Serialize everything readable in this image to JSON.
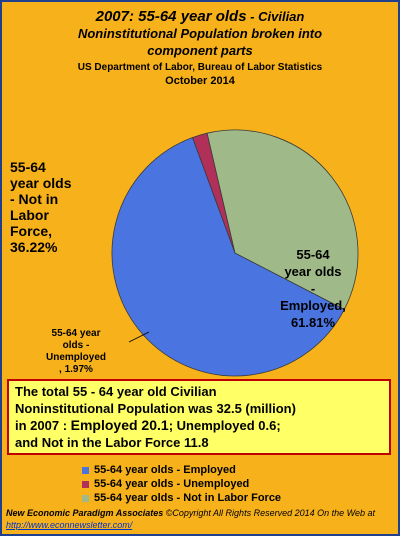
{
  "chart_data": {
    "type": "pie",
    "title_line1_year": "2007: 55-64 year olds",
    "title_line1_rest": " - Civilian",
    "title_line2": "Noninstitutional  Population broken  into",
    "title_line3": "component parts",
    "subtitle1": "US Department of Labor, Bureau of Labor Statistics",
    "subtitle2": "October 2014",
    "slices": [
      {
        "name": "55-64 year olds - Employed",
        "value": 61.81,
        "color": "#4a74e0",
        "label_parts": [
          "55-64",
          "year olds",
          "-",
          "Employed,",
          "61.81%"
        ]
      },
      {
        "name": "55-64 year olds - Unemployed",
        "value": 1.97,
        "color": "#b0305a",
        "label_parts": [
          "55-64 year",
          "olds -",
          "Unemployed",
          ", 1.97%"
        ]
      },
      {
        "name": "55-64 year olds - Not in Labor Force",
        "value": 36.22,
        "color": "#9fba88",
        "label_parts": [
          "55-64",
          "year olds",
          "- Not in",
          "Labor",
          "Force,",
          "36.22%"
        ]
      }
    ],
    "legend_position": "bottom",
    "start_angle_deg": 117.3
  },
  "note": {
    "line1": "The total  55 - 64 year old Civilian",
    "line2": "Noninstitutional Population was 32.5 (million)",
    "line3_a": "in 2007 :  ",
    "line3_b": "Employed 20.1",
    "line3_c": "; Unemployed 0.6;",
    "line4": "and Not in the Labor Force 11.8"
  },
  "footer": {
    "org": "New Economic Paradigm Associates",
    "copyright": " ©Copyright All Rights Reserved 2014 On the Web at",
    "url": "http://www.econnewsletter.com/"
  }
}
